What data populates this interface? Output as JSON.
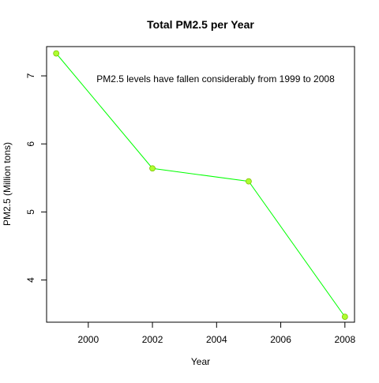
{
  "chart_data": {
    "type": "line",
    "title": "Total PM2.5 per Year",
    "xlabel": "Year",
    "ylabel": "PM2.5 (Million tons)",
    "annotation": "PM2.5 levels have fallen considerably from 1999 to 2008",
    "xlim": [
      1998.7,
      2008.3
    ],
    "ylim": [
      3.38,
      7.43
    ],
    "x_ticks": [
      2000,
      2002,
      2004,
      2006,
      2008
    ],
    "y_ticks": [
      4,
      5,
      6,
      7
    ],
    "grid": false,
    "series": [
      {
        "x": [
          1999,
          2002,
          2005,
          2008
        ],
        "values": [
          7.33,
          5.64,
          5.45,
          3.46
        ],
        "line_color": "#00ff00",
        "marker_fill": "#adff2f",
        "marker_stroke": "#7fbf00"
      }
    ]
  }
}
